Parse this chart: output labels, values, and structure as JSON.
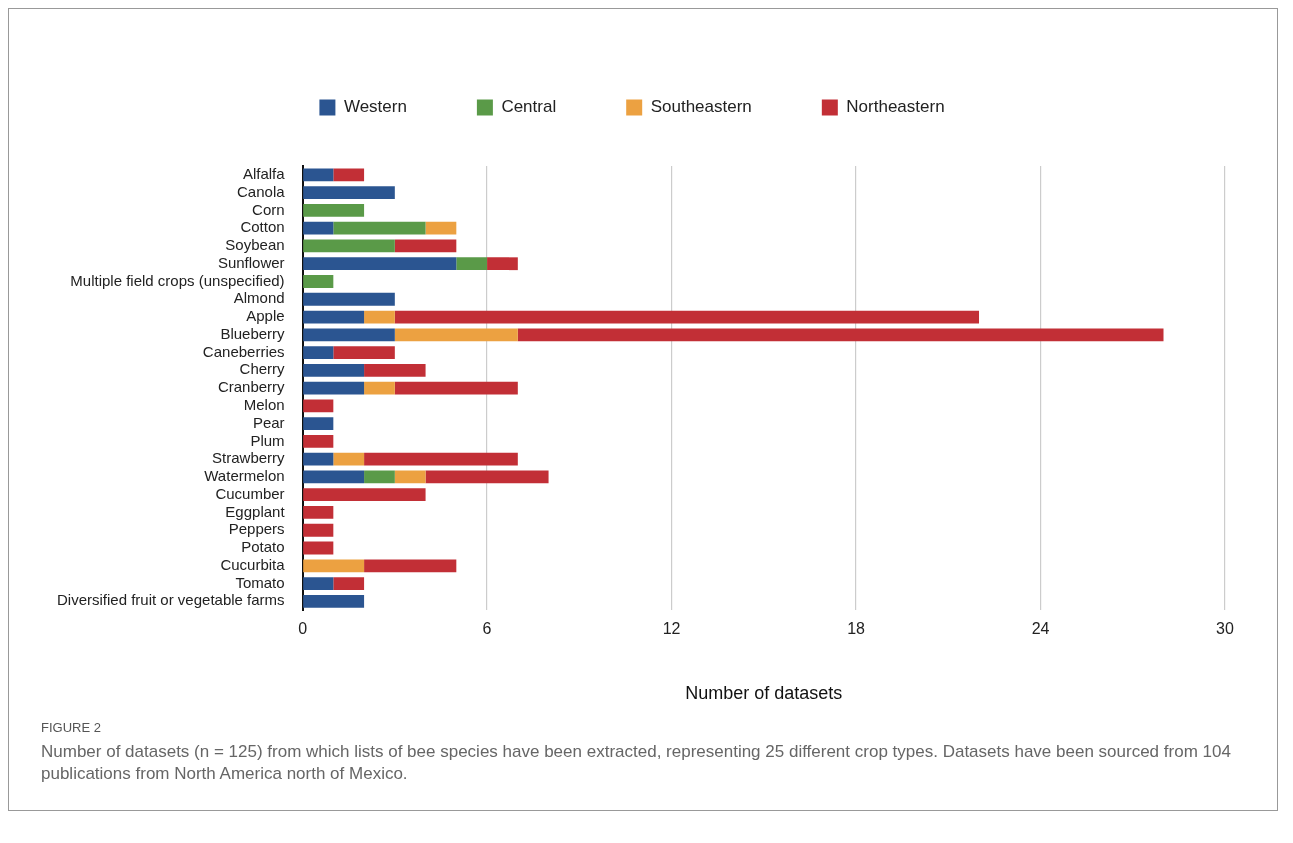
{
  "chart_data": {
    "type": "bar",
    "orientation": "horizontal",
    "stacked": true,
    "categories": [
      "Alfalfa",
      "Canola",
      "Corn",
      "Cotton",
      "Soybean",
      "Sunflower",
      "Multiple field crops (unspecified)",
      "Almond",
      "Apple",
      "Blueberry",
      "Caneberries",
      "Cherry",
      "Cranberry",
      "Melon",
      "Pear",
      "Plum",
      "Strawberry",
      "Watermelon",
      "Cucumber",
      "Eggplant",
      "Peppers",
      "Potato",
      "Cucurbita",
      "Tomato",
      "Diversified fruit or vegetable farms"
    ],
    "series": [
      {
        "name": "Western",
        "color": "#2b5591",
        "values": [
          1,
          3,
          null,
          1,
          null,
          5,
          null,
          3,
          2,
          3,
          1,
          2,
          2,
          null,
          1,
          null,
          1,
          2,
          null,
          null,
          null,
          null,
          null,
          1,
          2
        ]
      },
      {
        "name": "Central",
        "color": "#5a9a48",
        "values": [
          null,
          null,
          2,
          3,
          3,
          1,
          1,
          null,
          null,
          null,
          null,
          null,
          null,
          null,
          null,
          null,
          null,
          1,
          null,
          null,
          null,
          null,
          null,
          null,
          null
        ]
      },
      {
        "name": "Southeastern",
        "color": "#eca141",
        "values": [
          null,
          null,
          null,
          1,
          null,
          null,
          null,
          null,
          1,
          4,
          null,
          null,
          1,
          null,
          null,
          null,
          1,
          1,
          null,
          null,
          null,
          null,
          2,
          null,
          null
        ]
      },
      {
        "name": "Northeastern",
        "color": "#c22f36",
        "values": [
          1,
          null,
          null,
          null,
          2,
          1,
          null,
          null,
          19,
          21,
          2,
          2,
          4,
          1,
          null,
          1,
          5,
          4,
          4,
          1,
          1,
          1,
          3,
          1,
          null
        ]
      }
    ],
    "xlim": [
      0,
      30
    ],
    "xticks": [
      0,
      6,
      12,
      18,
      24,
      30
    ],
    "xlabel": "Number of datasets",
    "grid": "x",
    "legend": "top",
    "annotations": [
      "FIGURE 2",
      "Number of datasets (n = 125) from which lists of bee species have been extracted, representing 25 different crop types. Datasets have been sourced from 104 publications from North America north of Mexico."
    ]
  }
}
